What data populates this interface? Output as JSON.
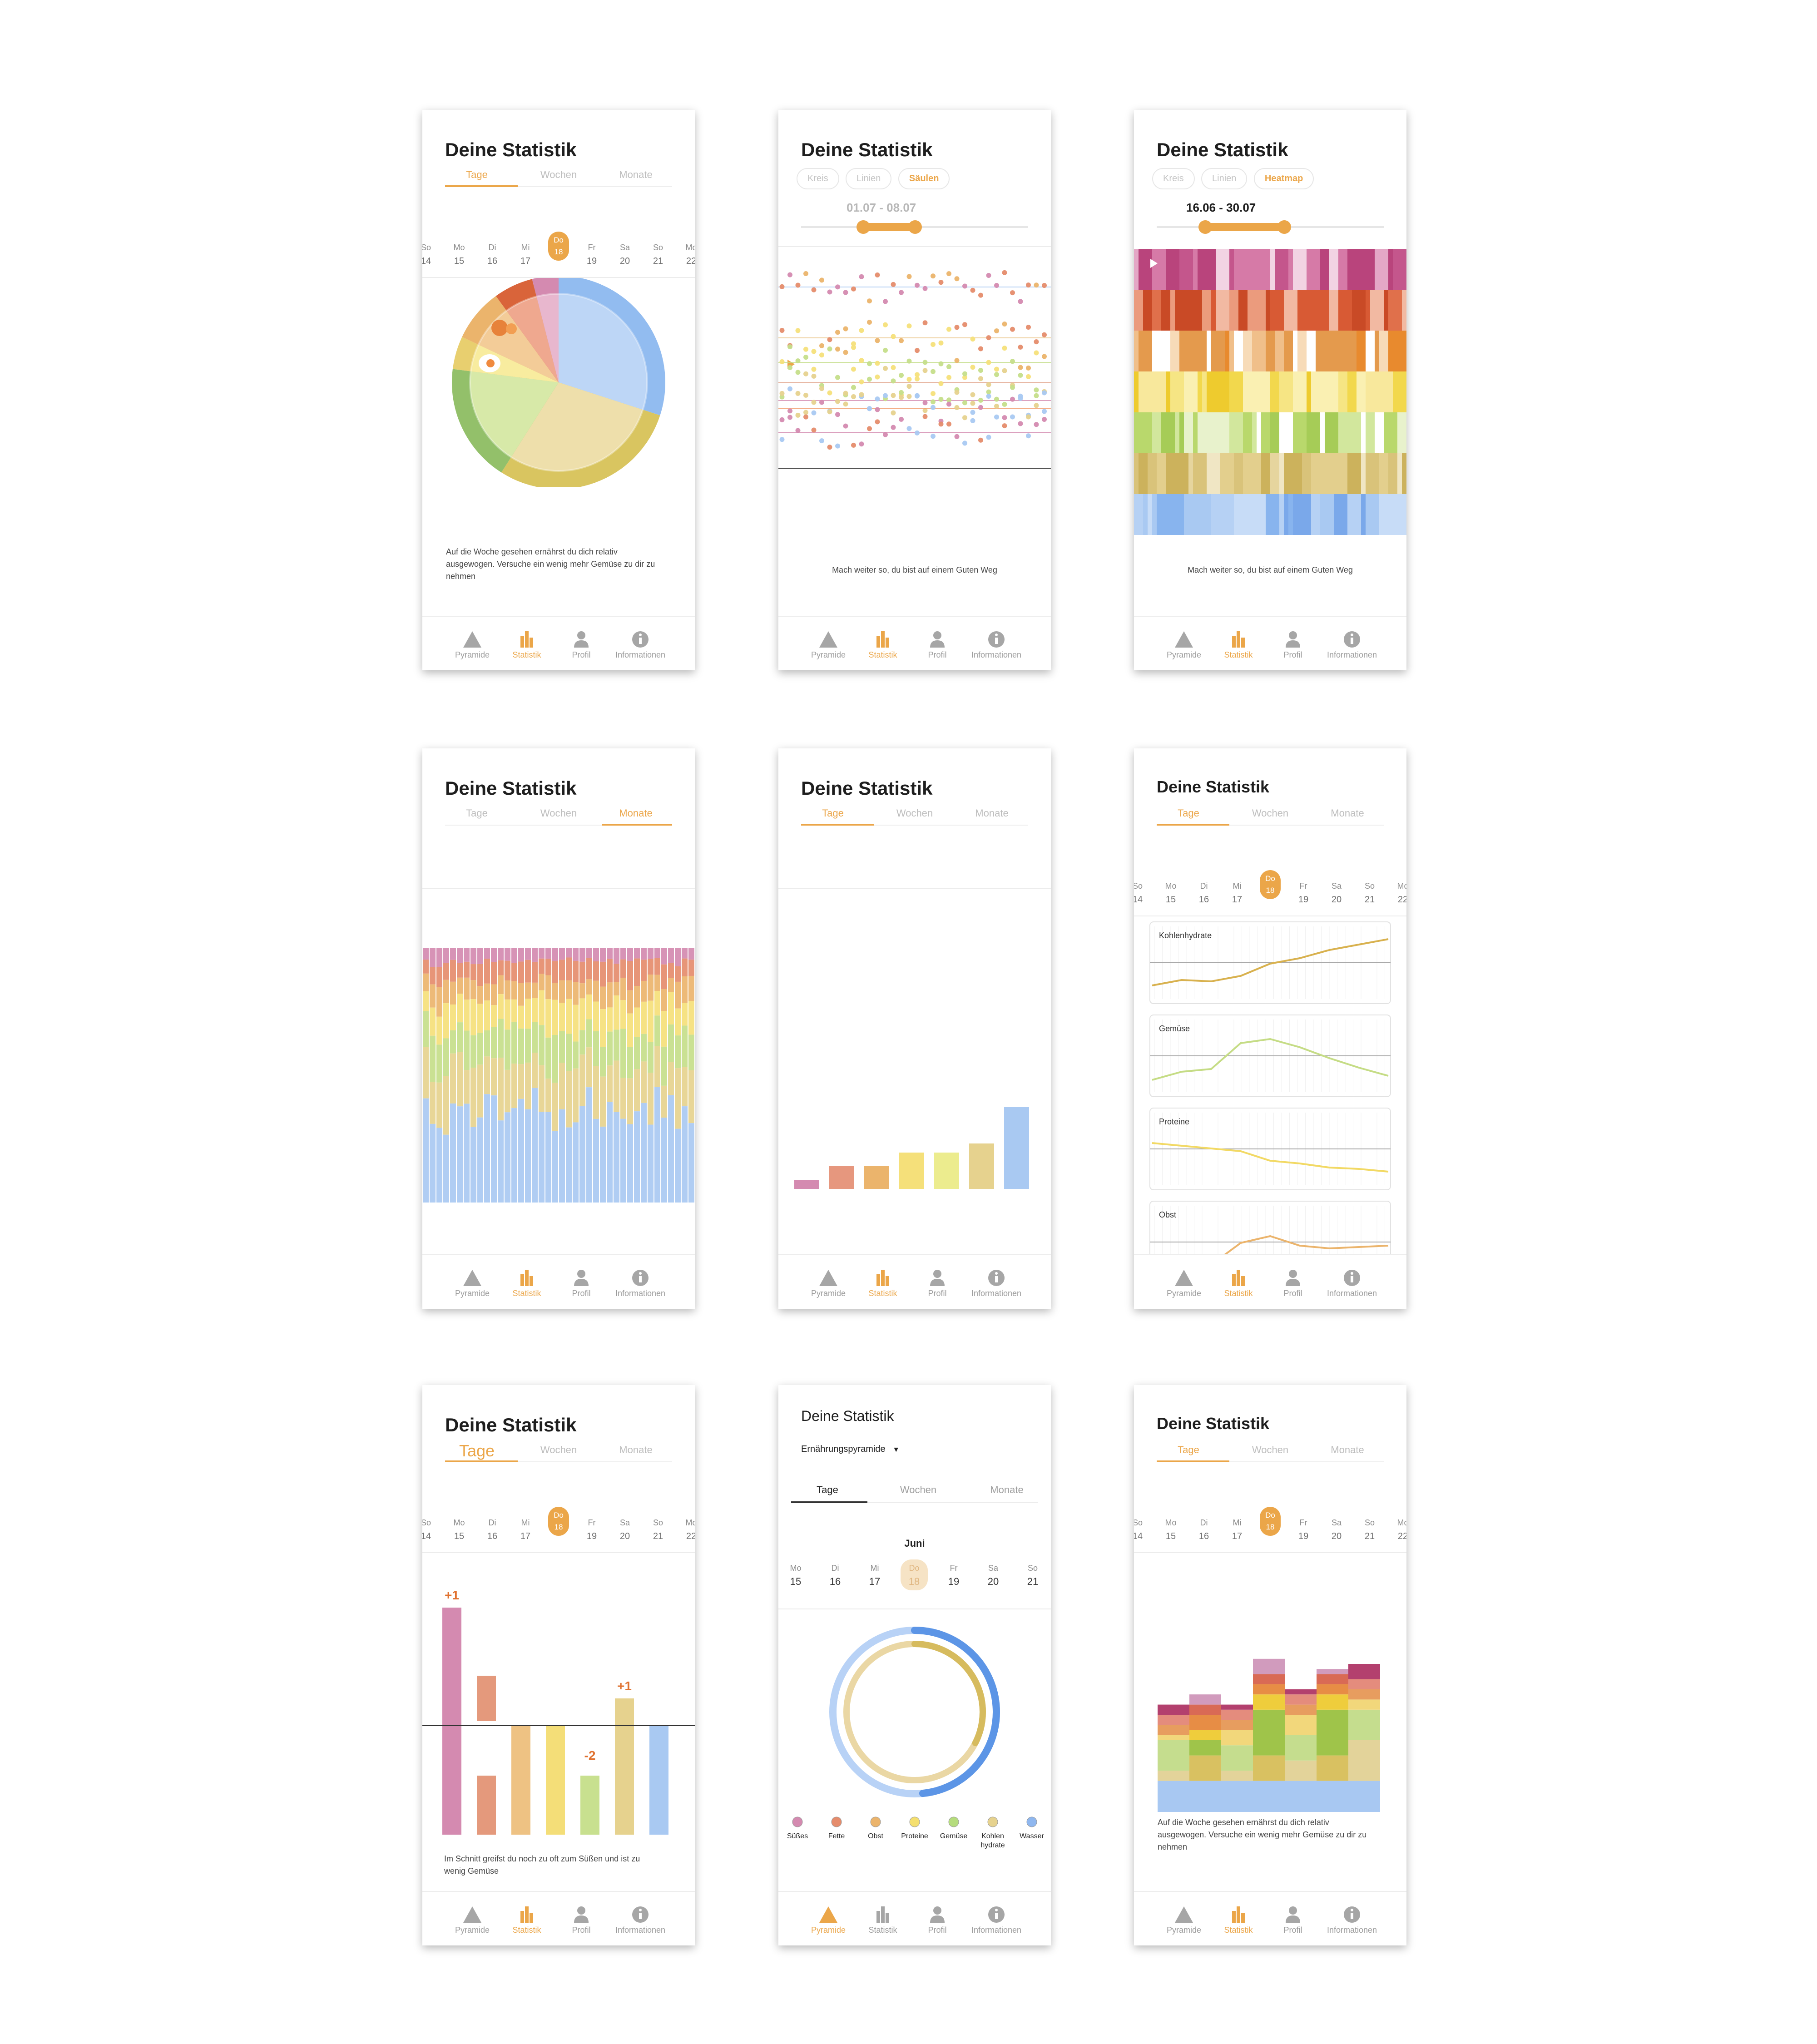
{
  "screens": {
    "s1": {
      "title": "Deine Statistik",
      "tabs": [
        "Tage",
        "Wochen",
        "Monate"
      ],
      "days": [
        {
          "d": "So",
          "n": "14"
        },
        {
          "d": "Mo",
          "n": "15"
        },
        {
          "d": "Di",
          "n": "16"
        },
        {
          "d": "Mi",
          "n": "17"
        },
        {
          "d": "Do",
          "n": "18"
        },
        {
          "d": "Fr",
          "n": "19"
        },
        {
          "d": "Sa",
          "n": "20"
        },
        {
          "d": "So",
          "n": "21"
        },
        {
          "d": "Mo",
          "n": "22"
        }
      ],
      "message": "Auf die Woche gesehen ernährst du dich relativ ausgewogen. Versuche ein wenig mehr Gemüse zu dir zu nehmen"
    },
    "s2": {
      "title": "Deine Statistik",
      "pills": [
        "Kreis",
        "Linien",
        "Säulen"
      ],
      "range": "01.07 - 08.07",
      "message": "Mach weiter so, du bist auf einem Guten Weg"
    },
    "s3": {
      "title": "Deine Statistik",
      "pills": [
        "Kreis",
        "Linien",
        "Heatmap"
      ],
      "range": "16.06 - 30.07",
      "message": "Mach weiter so, du bist auf einem Guten Weg"
    },
    "s4": {
      "title": "Deine Statistik",
      "tabs": [
        "Tage",
        "Wochen",
        "Monate"
      ]
    },
    "s5": {
      "title": "Deine Statistik",
      "tabs": [
        "Tage",
        "Wochen",
        "Monate"
      ]
    },
    "s6": {
      "title": "Deine Statistik",
      "tabs": [
        "Tage",
        "Wochen",
        "Monate"
      ],
      "days": [
        {
          "d": "So",
          "n": "14"
        },
        {
          "d": "Mo",
          "n": "15"
        },
        {
          "d": "Di",
          "n": "16"
        },
        {
          "d": "Mi",
          "n": "17"
        },
        {
          "d": "Do",
          "n": "18"
        },
        {
          "d": "Fr",
          "n": "19"
        },
        {
          "d": "Sa",
          "n": "20"
        },
        {
          "d": "So",
          "n": "21"
        },
        {
          "d": "Mo",
          "n": "22"
        }
      ],
      "charts": [
        "Kohlenhydrate",
        "Gemüse",
        "Proteine",
        "Obst"
      ]
    },
    "s7": {
      "title": "Deine Statistik",
      "tabs": [
        "Tage",
        "Wochen",
        "Monate"
      ],
      "days": [
        {
          "d": "So",
          "n": "14"
        },
        {
          "d": "Mo",
          "n": "15"
        },
        {
          "d": "Di",
          "n": "16"
        },
        {
          "d": "Mi",
          "n": "17"
        },
        {
          "d": "Do",
          "n": "18"
        },
        {
          "d": "Fr",
          "n": "19"
        },
        {
          "d": "Sa",
          "n": "20"
        },
        {
          "d": "So",
          "n": "21"
        },
        {
          "d": "Mo",
          "n": "22"
        }
      ],
      "message": "Im Schnitt greifst du noch zu oft zum Süßen und ist zu wenig Gemüse"
    },
    "s8": {
      "title": "Deine Statistik",
      "dropdown": "Ernährungspyramide",
      "tabs": [
        "Tage",
        "Wochen",
        "Monate"
      ],
      "month": "Juni",
      "days": [
        {
          "d": "Mo",
          "n": "15"
        },
        {
          "d": "Di",
          "n": "16"
        },
        {
          "d": "Mi",
          "n": "17"
        },
        {
          "d": "Do",
          "n": "18"
        },
        {
          "d": "Fr",
          "n": "19"
        },
        {
          "d": "Sa",
          "n": "20"
        },
        {
          "d": "So",
          "n": "21"
        }
      ],
      "legend": [
        "Süßes",
        "Fette",
        "Obst",
        "Proteine",
        "Gemüse",
        "Kohlen hydrate",
        "Wasser"
      ]
    },
    "s9": {
      "title": "Deine Statistik",
      "tabs": [
        "Tage",
        "Wochen",
        "Monate"
      ],
      "days": [
        {
          "d": "So",
          "n": "14"
        },
        {
          "d": "Mo",
          "n": "15"
        },
        {
          "d": "Di",
          "n": "16"
        },
        {
          "d": "Mi",
          "n": "17"
        },
        {
          "d": "Do",
          "n": "18"
        },
        {
          "d": "Fr",
          "n": "19"
        },
        {
          "d": "Sa",
          "n": "20"
        },
        {
          "d": "So",
          "n": "21"
        },
        {
          "d": "Mo",
          "n": "22"
        }
      ],
      "message": "Auf die Woche gesehen ernährst du dich relativ ausgewogen. Versuche ein wenig mehr Gemüse zu dir zu nehmen"
    }
  },
  "nav": {
    "pyramide": "Pyramide",
    "statistik": "Statistik",
    "profil": "Profil",
    "info": "Informationen"
  },
  "colors": {
    "accent": "#eba649",
    "suesses": "#d48ab0",
    "fette": "#e58c6c",
    "obst": "#ebb46c",
    "proteine": "#f5e07a",
    "gemuese": "#c5de8a",
    "kohlenhydrate": "#e6d28e",
    "wasser": "#a9c9f2"
  },
  "chart_data": [
    {
      "type": "pie",
      "categories": [
        "Süßes",
        "Fette",
        "Obst",
        "Proteine",
        "Gemüse",
        "Kohlenhydrate",
        "Wasser"
      ],
      "values": [
        4,
        6,
        8,
        5,
        18,
        29,
        30
      ]
    },
    {
      "type": "scatter",
      "series": [
        {
          "name": "Wasser",
          "values": [
            0.84,
            0.86,
            0.78,
            0.88,
            0.8,
            0.9,
            0.83,
            0.76,
            0.87,
            0.82,
            0.79,
            0.85,
            0.81
          ]
        },
        {
          "name": "Kohlenhydrate",
          "values": [
            0.62,
            0.66,
            0.58,
            0.64,
            0.6,
            0.68,
            0.63,
            0.57,
            0.65,
            0.61,
            0.59,
            0.67,
            0.62
          ]
        },
        {
          "name": "Gemüse",
          "values": [
            0.5,
            0.54,
            0.46,
            0.52,
            0.48,
            0.56,
            0.51,
            0.45,
            0.53,
            0.49,
            0.47,
            0.55,
            0.5
          ]
        },
        {
          "name": "Obst",
          "values": [
            0.34,
            0.38,
            0.3,
            0.36,
            0.32,
            0.4,
            0.35,
            0.29,
            0.37,
            0.33,
            0.31,
            0.39,
            0.34
          ]
        },
        {
          "name": "Süßes",
          "values": [
            0.14,
            0.18,
            0.1,
            0.16,
            0.12,
            0.2,
            0.15,
            0.09,
            0.17,
            0.13,
            0.11,
            0.19,
            0.14
          ]
        }
      ]
    },
    {
      "type": "heatmap",
      "rows": [
        "Süßes",
        "Fette",
        "Obst",
        "Proteine",
        "Gemüse",
        "Kohlenhydrate",
        "Wasser"
      ]
    },
    {
      "type": "bar",
      "stacked": true,
      "categories": [
        "Süßes",
        "Fette",
        "Obst",
        "Proteine",
        "Gemüse",
        "Kohlenhydrate",
        "Wasser"
      ],
      "values": [
        8,
        12,
        12,
        18,
        22,
        28,
        54
      ]
    },
    {
      "type": "bar",
      "categories": [
        "Süßes",
        "Fette",
        "Obst",
        "Proteine",
        "Gemüse",
        "Kohlenhydrate",
        "Wasser"
      ],
      "values": [
        2,
        5,
        5,
        8,
        8,
        10,
        18
      ]
    },
    {
      "type": "line",
      "series": [
        {
          "name": "Kohlenhydrate",
          "values": [
            0.2,
            0.28,
            0.26,
            0.34,
            0.52,
            0.6,
            0.72,
            0.8,
            0.88
          ]
        },
        {
          "name": "Gemüse",
          "values": [
            0.18,
            0.3,
            0.34,
            0.72,
            0.78,
            0.66,
            0.5,
            0.36,
            0.24
          ]
        },
        {
          "name": "Proteine",
          "values": [
            0.62,
            0.58,
            0.54,
            0.5,
            0.36,
            0.32,
            0.26,
            0.24,
            0.2
          ]
        },
        {
          "name": "Obst",
          "values": [
            0.1,
            0.14,
            0.2,
            0.52,
            0.62,
            0.48,
            0.44,
            0.46,
            0.48
          ]
        }
      ]
    },
    {
      "type": "bar",
      "categories": [
        "Süßes",
        "Fette",
        "Obst",
        "Proteine",
        "Gemüse",
        "Kohlenhydrate",
        "Wasser"
      ],
      "values": [
        1,
        -1,
        0,
        0,
        -2,
        1,
        0
      ],
      "annotations": [
        "+1",
        "",
        "",
        "",
        "-2",
        "+1",
        ""
      ]
    },
    {
      "type": "pie",
      "categories": [
        "Wasser",
        "Kohlenhydrate"
      ],
      "values": [
        55,
        45
      ]
    },
    {
      "type": "bar",
      "stacked": true,
      "categories": [
        "Mo",
        "Di",
        "Mi",
        "Do",
        "Fr",
        "Sa",
        "So"
      ],
      "series": [
        {
          "name": "Wasser",
          "values": [
            14,
            14,
            14,
            14,
            14,
            14,
            14
          ]
        },
        {
          "name": "Kohlenhydrate",
          "values": [
            4,
            10,
            4,
            10,
            8,
            10,
            16
          ]
        },
        {
          "name": "Gemüse",
          "values": [
            12,
            6,
            10,
            18,
            10,
            18,
            12
          ]
        },
        {
          "name": "Proteine",
          "values": [
            2,
            4,
            6,
            6,
            8,
            6,
            4
          ]
        },
        {
          "name": "Obst",
          "values": [
            4,
            6,
            4,
            4,
            4,
            4,
            4
          ]
        },
        {
          "name": "Fette",
          "values": [
            4,
            4,
            4,
            4,
            4,
            4,
            4
          ]
        },
        {
          "name": "Süßes",
          "values": [
            4,
            4,
            2,
            6,
            2,
            2,
            6
          ]
        }
      ]
    }
  ]
}
